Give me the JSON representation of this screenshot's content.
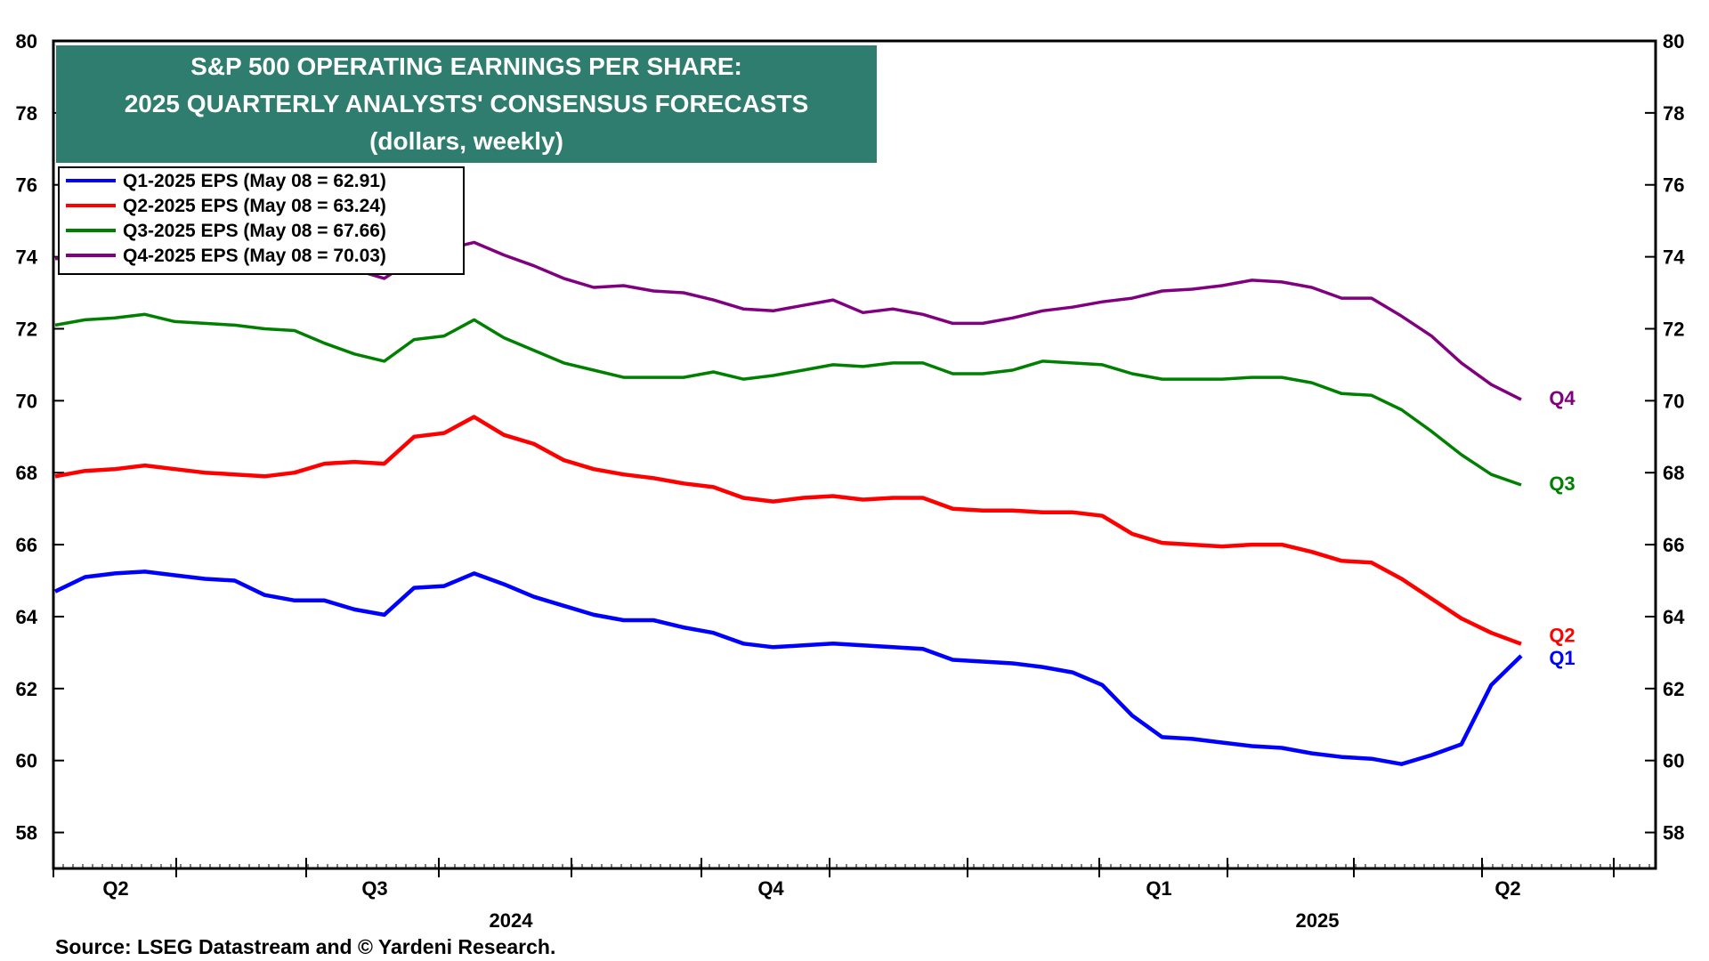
{
  "chart_data": {
    "type": "line",
    "title": "S&P 500 OPERATING EARNINGS PER SHARE:",
    "subtitle": "2025 QUARTERLY ANALYSTS' CONSENSUS FORECASTS",
    "subtitle2": "(dollars, weekly)",
    "ylim": [
      57,
      80
    ],
    "yticks": [
      58,
      60,
      62,
      64,
      66,
      68,
      70,
      72,
      74,
      76,
      78,
      80
    ],
    "x_quarter_labels": [
      "Q2",
      "Q3",
      "Q4",
      "Q1",
      "Q2"
    ],
    "x_year_labels": [
      "2024",
      "2025"
    ],
    "source": "Source: LSEG Datastream and © Yardeni Research.",
    "grid": false,
    "legend_position": "top-left",
    "series": [
      {
        "name": "Q1-2025 EPS (May 08 = 62.91)",
        "end_label": "Q1",
        "color": "#0000ff",
        "values": [
          64.7,
          65.1,
          65.2,
          65.25,
          65.15,
          65.05,
          65.0,
          64.6,
          64.45,
          64.45,
          64.2,
          64.05,
          64.8,
          64.85,
          65.2,
          64.9,
          64.55,
          64.3,
          64.05,
          63.9,
          63.9,
          63.7,
          63.55,
          63.25,
          63.15,
          63.2,
          63.25,
          63.2,
          63.15,
          63.1,
          62.8,
          62.75,
          62.7,
          62.6,
          62.45,
          62.1,
          61.25,
          60.65,
          60.6,
          60.5,
          60.4,
          60.35,
          60.2,
          60.1,
          60.05,
          59.9,
          60.15,
          60.45,
          62.1,
          62.91
        ]
      },
      {
        "name": "Q2-2025 EPS (May 08 = 63.24)",
        "end_label": "Q2",
        "color": "#ff0000",
        "values": [
          67.9,
          68.05,
          68.1,
          68.2,
          68.1,
          68.0,
          67.95,
          67.9,
          68.0,
          68.25,
          68.3,
          68.25,
          69.0,
          69.1,
          69.55,
          69.05,
          68.8,
          68.35,
          68.1,
          67.95,
          67.85,
          67.7,
          67.6,
          67.3,
          67.2,
          67.3,
          67.35,
          67.25,
          67.3,
          67.3,
          67.0,
          66.95,
          66.95,
          66.9,
          66.9,
          66.8,
          66.3,
          66.05,
          66.0,
          65.95,
          66.0,
          66.0,
          65.8,
          65.55,
          65.5,
          65.05,
          64.5,
          63.95,
          63.55,
          63.24
        ]
      },
      {
        "name": "Q3-2025 EPS (May 08 = 67.66)",
        "end_label": "Q3",
        "color": "#008000",
        "values": [
          72.1,
          72.25,
          72.3,
          72.4,
          72.2,
          72.15,
          72.1,
          72.0,
          71.95,
          71.6,
          71.3,
          71.1,
          71.7,
          71.8,
          72.25,
          71.75,
          71.4,
          71.05,
          70.85,
          70.65,
          70.65,
          70.65,
          70.8,
          70.6,
          70.7,
          70.85,
          71.0,
          70.95,
          71.05,
          71.05,
          70.75,
          70.75,
          70.85,
          71.1,
          71.05,
          71.0,
          70.75,
          70.6,
          70.6,
          70.6,
          70.65,
          70.65,
          70.5,
          70.2,
          70.15,
          69.75,
          69.15,
          68.5,
          67.95,
          67.66
        ]
      },
      {
        "name": "Q4-2025 EPS (May 08 = 70.03)",
        "end_label": "Q4",
        "color": "#800080",
        "values": [
          73.95,
          73.95,
          74.0,
          74.05,
          73.95,
          73.9,
          73.9,
          73.85,
          73.8,
          73.75,
          73.65,
          73.4,
          73.95,
          74.2,
          74.4,
          74.05,
          73.75,
          73.4,
          73.15,
          73.2,
          73.05,
          73.0,
          72.8,
          72.55,
          72.5,
          72.65,
          72.8,
          72.45,
          72.55,
          72.4,
          72.15,
          72.15,
          72.3,
          72.5,
          72.6,
          72.75,
          72.85,
          73.05,
          73.1,
          73.2,
          73.35,
          73.3,
          73.15,
          72.85,
          72.85,
          72.35,
          71.8,
          71.05,
          70.45,
          70.03
        ]
      }
    ]
  }
}
